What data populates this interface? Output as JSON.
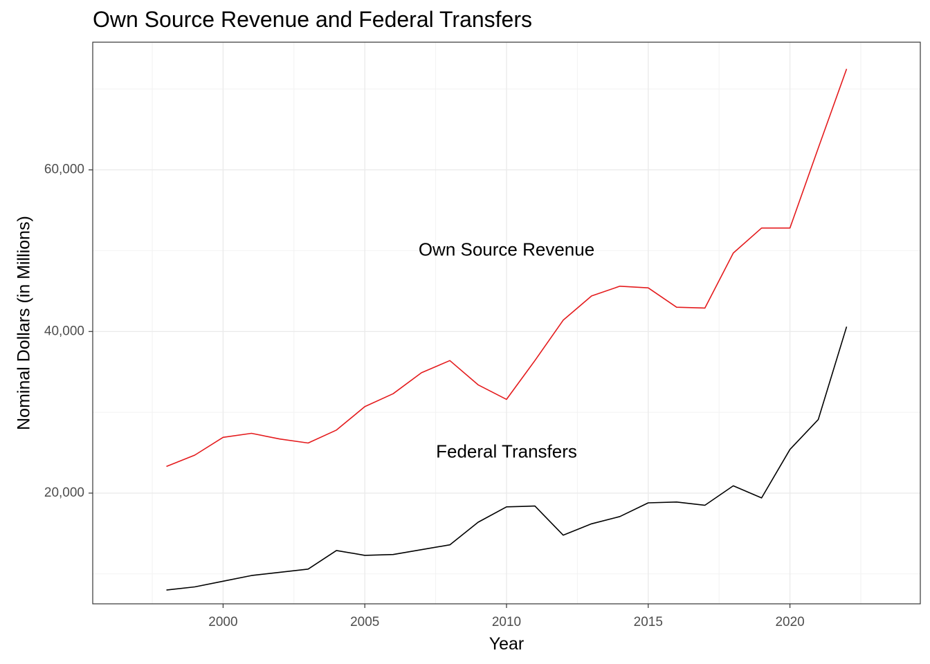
{
  "chart_data": {
    "type": "line",
    "title": "Own Source Revenue and Federal Transfers",
    "xlabel": "Year",
    "ylabel": "Nominal Dollars (in Millions)",
    "xlim": [
      1995.4,
      2024.6
    ],
    "ylim": [
      6300,
      75800
    ],
    "x_ticks": [
      2000,
      2005,
      2010,
      2015,
      2020
    ],
    "y_ticks": [
      20000,
      40000,
      60000
    ],
    "x_tick_labels": [
      "2000",
      "2005",
      "2010",
      "2015",
      "2020"
    ],
    "y_tick_labels": [
      "20,000",
      "40,000",
      "60,000"
    ],
    "grid": true,
    "x": [
      1998,
      1999,
      2000,
      2001,
      2002,
      2003,
      2004,
      2005,
      2006,
      2007,
      2008,
      2009,
      2010,
      2011,
      2012,
      2013,
      2014,
      2015,
      2016,
      2017,
      2018,
      2019,
      2020,
      2021,
      2022
    ],
    "series": [
      {
        "color": "#e41a1c",
        "values": [
          23300,
          24700,
          26900,
          27400,
          26700,
          26200,
          27800,
          30700,
          32300,
          34900,
          36400,
          33400,
          31600,
          36400,
          41400,
          44400,
          45600,
          45400,
          43000,
          42900,
          49700,
          52800,
          52800,
          62700,
          72500
        ]
      },
      {
        "color": "#000000",
        "values": [
          8000,
          8400,
          9100,
          9800,
          10200,
          10600,
          12900,
          12300,
          12400,
          13000,
          13600,
          16400,
          18300,
          18400,
          14800,
          16200,
          17100,
          18800,
          18900,
          18500,
          20900,
          19400,
          25400,
          29100,
          40600
        ]
      }
    ],
    "annotations": [
      {
        "text": "Own Source Revenue",
        "x": 2010,
        "y": 50000
      },
      {
        "text": "Federal Transfers",
        "x": 2010,
        "y": 25000
      }
    ]
  }
}
